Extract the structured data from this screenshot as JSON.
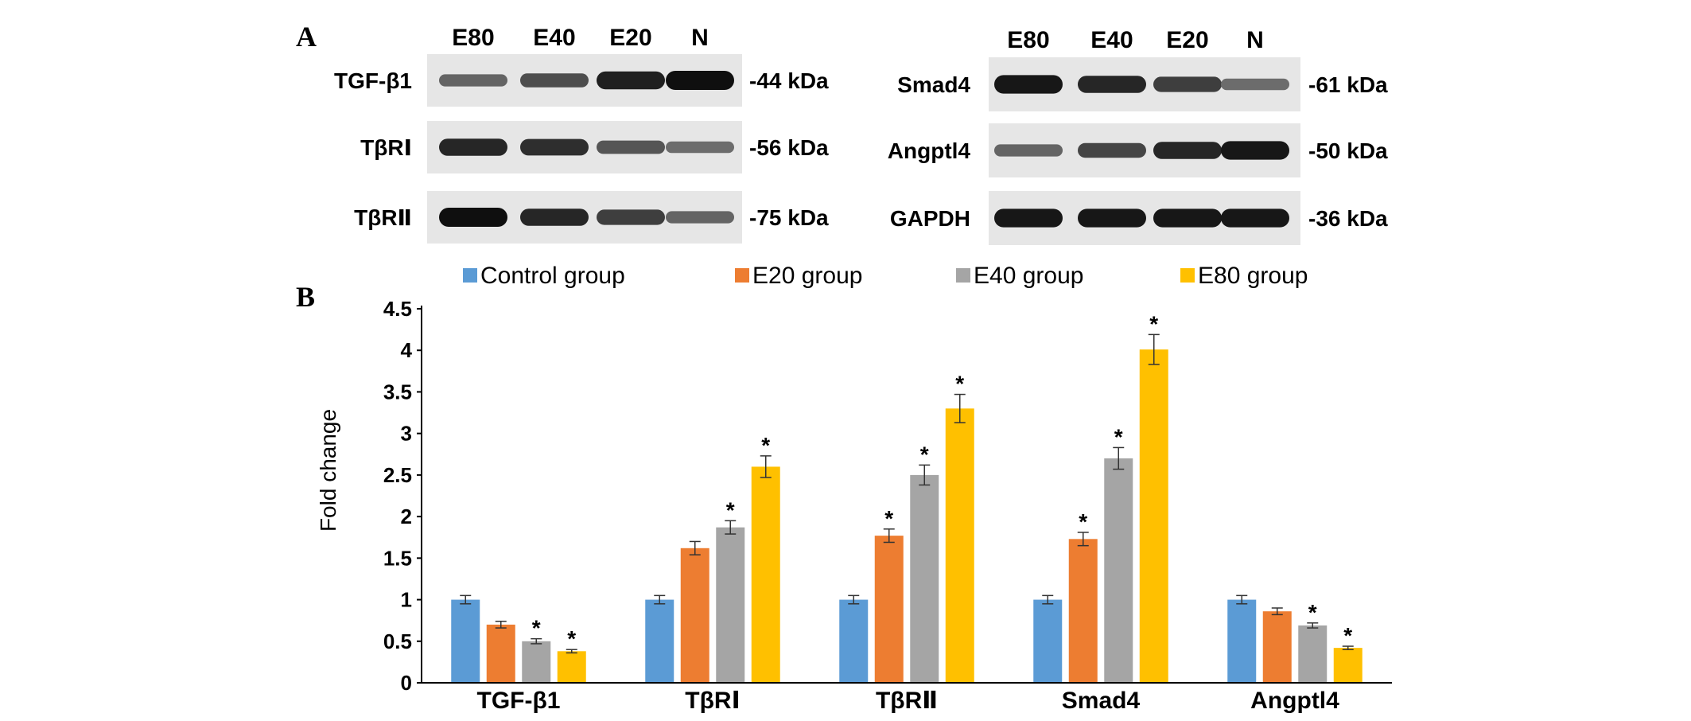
{
  "panels": {
    "a_label": "A",
    "b_label": "B"
  },
  "blot_left": {
    "lanes": [
      "E80",
      "E40",
      "E20",
      "N"
    ],
    "rows": [
      {
        "protein": "TGF-β1",
        "kda": "-44 kDa",
        "intensity": [
          0.45,
          0.6,
          0.9,
          1.0
        ]
      },
      {
        "protein": "TβRⅠ",
        "kda": "-56 kDa",
        "intensity": [
          0.85,
          0.8,
          0.55,
          0.4
        ]
      },
      {
        "protein": "TβRⅡ",
        "kda": "-75 kDa",
        "intensity": [
          1.0,
          0.85,
          0.7,
          0.45
        ]
      }
    ]
  },
  "blot_right": {
    "lanes": [
      "E80",
      "E40",
      "E20",
      "N"
    ],
    "rows": [
      {
        "protein": "Smad4",
        "kda": "-61 kDa",
        "intensity": [
          0.95,
          0.85,
          0.7,
          0.4
        ]
      },
      {
        "protein": "Angptl4",
        "kda": "-50 kDa",
        "intensity": [
          0.45,
          0.65,
          0.85,
          0.95
        ]
      },
      {
        "protein": "GAPDH",
        "kda": "-36 kDa",
        "intensity": [
          0.95,
          0.95,
          0.95,
          0.95
        ]
      }
    ]
  },
  "chart_data": {
    "type": "bar",
    "title": "",
    "xlabel": "",
    "ylabel": "Fold change",
    "ylim": [
      0,
      4.5
    ],
    "yticks": [
      0,
      0.5,
      1,
      1.5,
      2,
      2.5,
      3,
      3.5,
      4,
      4.5
    ],
    "grid": false,
    "legend_position": "top",
    "categories": [
      "TGF-β1",
      "TβRⅠ",
      "TβRⅡ",
      "Smad4",
      "Angptl4"
    ],
    "series": [
      {
        "name": "Control group",
        "color": "#5b9bd5",
        "values": [
          1.0,
          1.0,
          1.0,
          1.0,
          1.0
        ],
        "errors": [
          0.05,
          0.05,
          0.05,
          0.05,
          0.05
        ],
        "significant": [
          false,
          false,
          false,
          false,
          false
        ]
      },
      {
        "name": "E20 group",
        "color": "#ed7d31",
        "values": [
          0.7,
          1.62,
          1.77,
          1.73,
          0.86
        ],
        "errors": [
          0.04,
          0.08,
          0.08,
          0.08,
          0.04
        ],
        "significant": [
          false,
          false,
          true,
          true,
          false
        ]
      },
      {
        "name": "E40 group",
        "color": "#a5a5a5",
        "values": [
          0.5,
          1.87,
          2.5,
          2.7,
          0.69
        ],
        "errors": [
          0.03,
          0.08,
          0.12,
          0.13,
          0.03
        ],
        "significant": [
          true,
          true,
          true,
          true,
          true
        ]
      },
      {
        "name": "E80 group",
        "color": "#ffc000",
        "values": [
          0.38,
          2.6,
          3.3,
          4.01,
          0.42
        ],
        "errors": [
          0.02,
          0.13,
          0.17,
          0.18,
          0.02
        ],
        "significant": [
          true,
          true,
          true,
          true,
          true
        ]
      }
    ],
    "significance_marker": "*"
  }
}
